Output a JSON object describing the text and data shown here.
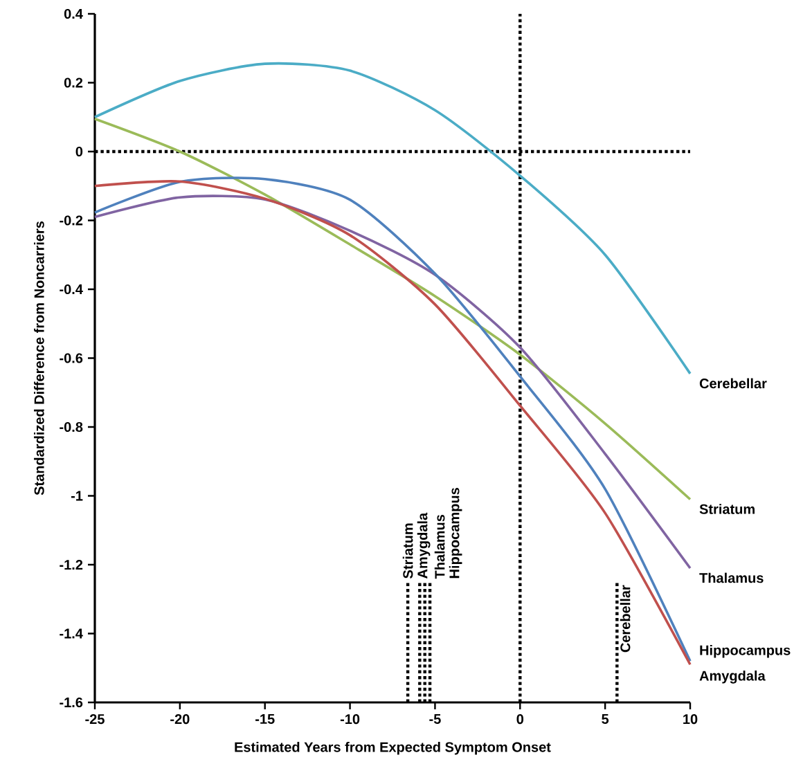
{
  "chart_data": {
    "type": "line",
    "xlabel": "Estimated Years from Expected Symptom Onset",
    "ylabel": "Standardized Difference from Noncarriers",
    "x": [
      -25,
      -20,
      -15,
      -10,
      -5,
      0,
      5,
      10
    ],
    "series": [
      {
        "name": "Cerebellar",
        "color": "#4bacc6",
        "values": [
          0.1,
          0.205,
          0.255,
          0.235,
          0.12,
          -0.07,
          -0.3,
          -0.645
        ]
      },
      {
        "name": "Striatum",
        "color": "#9bbb59",
        "values": [
          0.095,
          0.0,
          -0.125,
          -0.27,
          -0.42,
          -0.59,
          -0.79,
          -1.01
        ]
      },
      {
        "name": "Thalamus",
        "color": "#8064a2",
        "values": [
          -0.19,
          -0.133,
          -0.139,
          -0.23,
          -0.358,
          -0.569,
          -0.878,
          -1.21
        ]
      },
      {
        "name": "Hippocampus",
        "color": "#4f81bd",
        "values": [
          -0.177,
          -0.088,
          -0.08,
          -0.14,
          -0.355,
          -0.653,
          -0.98,
          -1.48
        ]
      },
      {
        "name": "Amygdala",
        "color": "#c0504d",
        "values": [
          -0.1,
          -0.087,
          -0.137,
          -0.243,
          -0.444,
          -0.738,
          -1.05,
          -1.49
        ]
      }
    ],
    "xlim": [
      -25,
      10
    ],
    "xticks": [
      -25,
      -20,
      -15,
      -10,
      -5,
      0,
      5,
      10
    ],
    "ylim": [
      -1.6,
      0.4
    ],
    "yticks": [
      -1.6,
      -1.4,
      -1.2,
      -1,
      -0.8,
      -0.6,
      -0.4,
      -0.2,
      0,
      0.2,
      0.4
    ],
    "ref_lines": [
      {
        "axis": "y",
        "value": 0,
        "line_style": "dotted"
      },
      {
        "axis": "x",
        "value": 0,
        "line_style": "dotted"
      },
      {
        "axis": "x",
        "value": -6.6,
        "label": "Striatum",
        "line_style": "dotted"
      },
      {
        "axis": "x",
        "value": -5.9,
        "label": "Amygdala",
        "line_style": "dotted"
      },
      {
        "axis": "x",
        "value": -5.6,
        "label": "Thalamus",
        "line_style": "dotted"
      },
      {
        "axis": "x",
        "value": -5.3,
        "label": "Hippocampus",
        "line_style": "dotted"
      },
      {
        "axis": "x",
        "value": 5.7,
        "label": "Cerebellar",
        "line_style": "dotted"
      }
    ],
    "grid": false,
    "legend": false,
    "marker": "none",
    "line_style": "solid"
  }
}
